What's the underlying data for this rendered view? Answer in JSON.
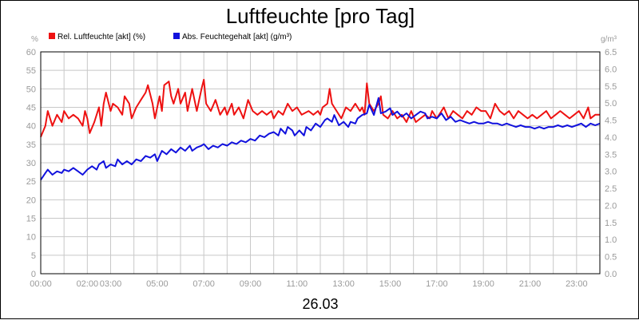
{
  "chart_data": {
    "type": "line",
    "title": "Luftfeuchte [pro Tag]",
    "date_label": "26.03",
    "y_left": {
      "unit": "%",
      "min": 0,
      "max": 60,
      "step": 5,
      "ticks": [
        "0",
        "5",
        "10",
        "15",
        "20",
        "25",
        "30",
        "35",
        "40",
        "45",
        "50",
        "55",
        "60"
      ]
    },
    "y_right": {
      "unit": "g/m³",
      "min": 0,
      "max": 6.5,
      "step": 0.5,
      "ticks": [
        "0.0",
        "0.5",
        "1.0",
        "1.5",
        "2.0",
        "2.5",
        "3.0",
        "3.5",
        "4.0",
        "4.5",
        "5.0",
        "5.5",
        "6.0",
        "6.5"
      ]
    },
    "x": {
      "min_hour": 0,
      "max_hour": 24,
      "tick_labels": [
        {
          "hour": 0,
          "label": "00:00"
        },
        {
          "hour": 2,
          "label": "02:00"
        },
        {
          "hour": 3,
          "label": "03:00"
        },
        {
          "hour": 5,
          "label": "05:00"
        },
        {
          "hour": 7,
          "label": "07:00"
        },
        {
          "hour": 9,
          "label": "09:00"
        },
        {
          "hour": 11,
          "label": "11:00"
        },
        {
          "hour": 13,
          "label": "13:00"
        },
        {
          "hour": 15,
          "label": "15:00"
        },
        {
          "hour": 17,
          "label": "17:00"
        },
        {
          "hour": 19,
          "label": "19:00"
        },
        {
          "hour": 21,
          "label": "21:00"
        },
        {
          "hour": 23,
          "label": "23:00"
        }
      ]
    },
    "grid": true,
    "legend_position": "top-left",
    "series": [
      {
        "name": "Rel. Luftfeuchte [akt] (%)",
        "axis": "left",
        "color": "#ee1111",
        "points": [
          [
            0,
            37
          ],
          [
            0.2,
            40
          ],
          [
            0.3,
            44
          ],
          [
            0.5,
            40
          ],
          [
            0.7,
            43
          ],
          [
            0.9,
            41
          ],
          [
            1.0,
            44
          ],
          [
            1.2,
            42
          ],
          [
            1.4,
            43
          ],
          [
            1.6,
            42
          ],
          [
            1.8,
            40
          ],
          [
            1.9,
            44
          ],
          [
            2.0,
            42
          ],
          [
            2.1,
            38
          ],
          [
            2.3,
            41
          ],
          [
            2.5,
            45
          ],
          [
            2.6,
            40
          ],
          [
            2.7,
            46
          ],
          [
            2.8,
            49
          ],
          [
            3.0,
            44
          ],
          [
            3.1,
            46
          ],
          [
            3.3,
            45
          ],
          [
            3.5,
            43
          ],
          [
            3.6,
            48
          ],
          [
            3.8,
            46
          ],
          [
            3.9,
            42
          ],
          [
            4.1,
            45
          ],
          [
            4.3,
            47
          ],
          [
            4.5,
            49
          ],
          [
            4.6,
            51
          ],
          [
            4.8,
            46
          ],
          [
            4.9,
            42
          ],
          [
            5.1,
            48
          ],
          [
            5.2,
            44
          ],
          [
            5.3,
            51
          ],
          [
            5.5,
            52
          ],
          [
            5.6,
            48
          ],
          [
            5.7,
            46
          ],
          [
            5.9,
            50
          ],
          [
            6.0,
            46
          ],
          [
            6.2,
            49
          ],
          [
            6.3,
            44
          ],
          [
            6.5,
            50
          ],
          [
            6.6,
            47
          ],
          [
            6.7,
            44
          ],
          [
            6.9,
            50
          ],
          [
            7.0,
            52.5
          ],
          [
            7.1,
            46
          ],
          [
            7.3,
            44
          ],
          [
            7.5,
            47
          ],
          [
            7.7,
            43
          ],
          [
            7.9,
            45
          ],
          [
            8.0,
            43
          ],
          [
            8.2,
            46
          ],
          [
            8.3,
            43
          ],
          [
            8.5,
            45
          ],
          [
            8.7,
            42
          ],
          [
            8.9,
            47
          ],
          [
            9.1,
            44
          ],
          [
            9.3,
            43
          ],
          [
            9.5,
            44
          ],
          [
            9.7,
            43
          ],
          [
            9.9,
            44
          ],
          [
            10.0,
            42
          ],
          [
            10.2,
            44
          ],
          [
            10.4,
            43
          ],
          [
            10.6,
            46
          ],
          [
            10.8,
            44
          ],
          [
            11.0,
            45
          ],
          [
            11.2,
            43
          ],
          [
            11.5,
            44
          ],
          [
            11.7,
            43
          ],
          [
            11.9,
            44
          ],
          [
            12.0,
            43
          ],
          [
            12.1,
            45
          ],
          [
            12.3,
            46
          ],
          [
            12.4,
            50
          ],
          [
            12.5,
            46
          ],
          [
            12.7,
            44
          ],
          [
            12.9,
            42
          ],
          [
            13.1,
            45
          ],
          [
            13.3,
            44
          ],
          [
            13.5,
            46
          ],
          [
            13.7,
            44
          ],
          [
            13.8,
            45
          ],
          [
            13.9,
            43
          ],
          [
            14.0,
            51.5
          ],
          [
            14.1,
            46
          ],
          [
            14.3,
            44
          ],
          [
            14.5,
            46
          ],
          [
            14.6,
            48
          ],
          [
            14.7,
            43
          ],
          [
            14.9,
            42
          ],
          [
            15.1,
            44
          ],
          [
            15.3,
            42
          ],
          [
            15.5,
            43
          ],
          [
            15.7,
            41
          ],
          [
            15.9,
            44
          ],
          [
            16.1,
            41
          ],
          [
            16.3,
            42
          ],
          [
            16.5,
            43
          ],
          [
            16.7,
            42
          ],
          [
            16.8,
            44
          ],
          [
            17.0,
            42
          ],
          [
            17.2,
            44
          ],
          [
            17.3,
            45
          ],
          [
            17.5,
            42
          ],
          [
            17.7,
            44
          ],
          [
            17.9,
            43
          ],
          [
            18.1,
            42
          ],
          [
            18.3,
            44
          ],
          [
            18.5,
            43
          ],
          [
            18.7,
            45
          ],
          [
            18.9,
            44
          ],
          [
            19.1,
            44
          ],
          [
            19.3,
            42
          ],
          [
            19.5,
            46
          ],
          [
            19.7,
            44
          ],
          [
            19.9,
            43
          ],
          [
            20.1,
            44
          ],
          [
            20.3,
            42
          ],
          [
            20.5,
            44
          ],
          [
            20.7,
            43
          ],
          [
            20.9,
            42
          ],
          [
            21.1,
            43
          ],
          [
            21.3,
            42
          ],
          [
            21.5,
            43
          ],
          [
            21.7,
            44
          ],
          [
            21.9,
            42
          ],
          [
            22.1,
            43
          ],
          [
            22.3,
            44
          ],
          [
            22.5,
            43
          ],
          [
            22.7,
            42
          ],
          [
            22.9,
            43
          ],
          [
            23.1,
            44
          ],
          [
            23.3,
            42
          ],
          [
            23.5,
            45
          ],
          [
            23.6,
            42
          ],
          [
            23.8,
            43
          ],
          [
            24.0,
            43
          ]
        ]
      },
      {
        "name": "Abs. Feuchtegehalt [akt] (g/m³)",
        "axis": "right",
        "color": "#1111dd",
        "points": [
          [
            0,
            2.75
          ],
          [
            0.2,
            2.95
          ],
          [
            0.3,
            3.05
          ],
          [
            0.5,
            2.9
          ],
          [
            0.7,
            3.0
          ],
          [
            0.9,
            2.95
          ],
          [
            1.0,
            3.05
          ],
          [
            1.2,
            3.0
          ],
          [
            1.4,
            3.1
          ],
          [
            1.6,
            3.0
          ],
          [
            1.8,
            2.9
          ],
          [
            2.0,
            3.05
          ],
          [
            2.2,
            3.15
          ],
          [
            2.4,
            3.05
          ],
          [
            2.5,
            3.2
          ],
          [
            2.7,
            3.3
          ],
          [
            2.8,
            3.1
          ],
          [
            3.0,
            3.2
          ],
          [
            3.2,
            3.15
          ],
          [
            3.3,
            3.35
          ],
          [
            3.5,
            3.2
          ],
          [
            3.7,
            3.3
          ],
          [
            3.9,
            3.2
          ],
          [
            4.1,
            3.35
          ],
          [
            4.3,
            3.3
          ],
          [
            4.5,
            3.45
          ],
          [
            4.7,
            3.4
          ],
          [
            4.9,
            3.5
          ],
          [
            5.0,
            3.3
          ],
          [
            5.2,
            3.6
          ],
          [
            5.4,
            3.5
          ],
          [
            5.6,
            3.65
          ],
          [
            5.8,
            3.55
          ],
          [
            6.0,
            3.7
          ],
          [
            6.2,
            3.6
          ],
          [
            6.4,
            3.75
          ],
          [
            6.5,
            3.6
          ],
          [
            6.7,
            3.7
          ],
          [
            6.9,
            3.75
          ],
          [
            7.0,
            3.8
          ],
          [
            7.2,
            3.65
          ],
          [
            7.4,
            3.75
          ],
          [
            7.6,
            3.7
          ],
          [
            7.8,
            3.8
          ],
          [
            8.0,
            3.75
          ],
          [
            8.2,
            3.85
          ],
          [
            8.4,
            3.8
          ],
          [
            8.6,
            3.9
          ],
          [
            8.8,
            3.85
          ],
          [
            9.0,
            3.95
          ],
          [
            9.2,
            3.9
          ],
          [
            9.4,
            4.05
          ],
          [
            9.6,
            4.0
          ],
          [
            9.8,
            4.1
          ],
          [
            10.0,
            4.15
          ],
          [
            10.2,
            4.05
          ],
          [
            10.3,
            4.25
          ],
          [
            10.5,
            4.1
          ],
          [
            10.6,
            4.3
          ],
          [
            10.8,
            4.2
          ],
          [
            10.9,
            4.05
          ],
          [
            11.1,
            4.2
          ],
          [
            11.3,
            4.05
          ],
          [
            11.4,
            4.3
          ],
          [
            11.6,
            4.2
          ],
          [
            11.8,
            4.4
          ],
          [
            12.0,
            4.3
          ],
          [
            12.2,
            4.5
          ],
          [
            12.3,
            4.55
          ],
          [
            12.5,
            4.45
          ],
          [
            12.6,
            4.65
          ],
          [
            12.8,
            4.35
          ],
          [
            13.0,
            4.45
          ],
          [
            13.2,
            4.3
          ],
          [
            13.3,
            4.45
          ],
          [
            13.5,
            4.4
          ],
          [
            13.6,
            4.55
          ],
          [
            13.8,
            4.65
          ],
          [
            14.0,
            4.7
          ],
          [
            14.1,
            4.95
          ],
          [
            14.3,
            4.65
          ],
          [
            14.5,
            5.15
          ],
          [
            14.6,
            4.7
          ],
          [
            14.8,
            4.75
          ],
          [
            15.0,
            4.85
          ],
          [
            15.1,
            4.65
          ],
          [
            15.3,
            4.75
          ],
          [
            15.5,
            4.6
          ],
          [
            15.7,
            4.7
          ],
          [
            15.9,
            4.55
          ],
          [
            16.1,
            4.65
          ],
          [
            16.3,
            4.75
          ],
          [
            16.5,
            4.7
          ],
          [
            16.6,
            4.55
          ],
          [
            16.8,
            4.6
          ],
          [
            17.0,
            4.55
          ],
          [
            17.2,
            4.7
          ],
          [
            17.4,
            4.5
          ],
          [
            17.6,
            4.6
          ],
          [
            17.8,
            4.45
          ],
          [
            18.0,
            4.5
          ],
          [
            18.2,
            4.45
          ],
          [
            18.4,
            4.4
          ],
          [
            18.6,
            4.45
          ],
          [
            18.8,
            4.4
          ],
          [
            19.0,
            4.4
          ],
          [
            19.2,
            4.45
          ],
          [
            19.4,
            4.4
          ],
          [
            19.6,
            4.4
          ],
          [
            19.8,
            4.35
          ],
          [
            20.0,
            4.4
          ],
          [
            20.2,
            4.35
          ],
          [
            20.4,
            4.3
          ],
          [
            20.6,
            4.35
          ],
          [
            20.8,
            4.3
          ],
          [
            21.0,
            4.3
          ],
          [
            21.2,
            4.25
          ],
          [
            21.4,
            4.3
          ],
          [
            21.6,
            4.25
          ],
          [
            21.8,
            4.3
          ],
          [
            22.0,
            4.3
          ],
          [
            22.2,
            4.35
          ],
          [
            22.4,
            4.3
          ],
          [
            22.6,
            4.35
          ],
          [
            22.8,
            4.3
          ],
          [
            23.0,
            4.35
          ],
          [
            23.2,
            4.4
          ],
          [
            23.4,
            4.3
          ],
          [
            23.6,
            4.4
          ],
          [
            23.8,
            4.35
          ],
          [
            24.0,
            4.4
          ]
        ]
      }
    ]
  }
}
